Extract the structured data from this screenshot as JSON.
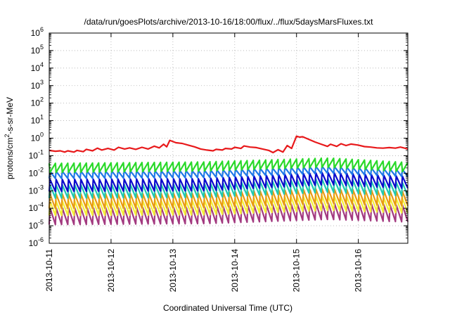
{
  "chart_data": {
    "type": "line",
    "title": "/data/run/goesPlots/archive/2013-10-16/18:00/flux/../flux/5daysMarsFluxes.txt",
    "xlabel": "Coordinated Universal Time (UTC)",
    "ylabel_parts": {
      "pre": "protons/cm",
      "sup": "2",
      "post": "-s-sr-MeV"
    },
    "x_ticks": [
      "2013-10-11",
      "2013-10-12",
      "2013-10-13",
      "2013-10-14",
      "2013-10-15",
      "2013-10-16"
    ],
    "xlim_days": [
      0,
      5.8
    ],
    "y_scale": "log",
    "ylim_exp": [
      -6,
      6
    ],
    "y_ticks": [
      {
        "base": "10",
        "exp": "-6"
      },
      {
        "base": "10",
        "exp": "-5"
      },
      {
        "base": "10",
        "exp": "-4"
      },
      {
        "base": "10",
        "exp": "-3"
      },
      {
        "base": "10",
        "exp": "-2"
      },
      {
        "base": "10",
        "exp": "-1"
      },
      {
        "base": "10",
        "exp": "0"
      },
      {
        "base": "10",
        "exp": "1"
      },
      {
        "base": "10",
        "exp": "2"
      },
      {
        "base": "10",
        "exp": "3"
      },
      {
        "base": "10",
        "exp": "4"
      },
      {
        "base": "10",
        "exp": "5"
      },
      {
        "base": "10",
        "exp": "6"
      }
    ],
    "grid": true,
    "series": [
      {
        "color": "#e8191b",
        "kind": "red",
        "points": [
          [
            0.0,
            0.2
          ],
          [
            0.1,
            0.18
          ],
          [
            0.18,
            0.19
          ],
          [
            0.25,
            0.16
          ],
          [
            0.3,
            0.19
          ],
          [
            0.4,
            0.16
          ],
          [
            0.45,
            0.2
          ],
          [
            0.55,
            0.17
          ],
          [
            0.6,
            0.23
          ],
          [
            0.7,
            0.19
          ],
          [
            0.78,
            0.27
          ],
          [
            0.85,
            0.21
          ],
          [
            0.95,
            0.26
          ],
          [
            1.05,
            0.21
          ],
          [
            1.12,
            0.3
          ],
          [
            1.22,
            0.24
          ],
          [
            1.3,
            0.28
          ],
          [
            1.4,
            0.23
          ],
          [
            1.5,
            0.3
          ],
          [
            1.6,
            0.24
          ],
          [
            1.7,
            0.35
          ],
          [
            1.78,
            0.28
          ],
          [
            1.85,
            0.45
          ],
          [
            1.9,
            0.32
          ],
          [
            1.95,
            0.75
          ],
          [
            2.05,
            0.55
          ],
          [
            2.15,
            0.5
          ],
          [
            2.25,
            0.4
          ],
          [
            2.35,
            0.32
          ],
          [
            2.45,
            0.24
          ],
          [
            2.55,
            0.21
          ],
          [
            2.65,
            0.19
          ],
          [
            2.7,
            0.23
          ],
          [
            2.8,
            0.21
          ],
          [
            2.85,
            0.26
          ],
          [
            2.95,
            0.24
          ],
          [
            3.0,
            0.3
          ],
          [
            3.1,
            0.26
          ],
          [
            3.15,
            0.36
          ],
          [
            3.25,
            0.31
          ],
          [
            3.35,
            0.29
          ],
          [
            3.45,
            0.24
          ],
          [
            3.55,
            0.2
          ],
          [
            3.62,
            0.15
          ],
          [
            3.7,
            0.22
          ],
          [
            3.78,
            0.16
          ],
          [
            3.85,
            0.38
          ],
          [
            3.92,
            0.26
          ],
          [
            4.0,
            1.3
          ],
          [
            4.05,
            1.15
          ],
          [
            4.1,
            1.2
          ],
          [
            4.2,
            0.85
          ],
          [
            4.3,
            0.6
          ],
          [
            4.4,
            0.45
          ],
          [
            4.5,
            0.34
          ],
          [
            4.55,
            0.45
          ],
          [
            4.65,
            0.34
          ],
          [
            4.72,
            0.48
          ],
          [
            4.8,
            0.38
          ],
          [
            4.88,
            0.46
          ],
          [
            5.0,
            0.4
          ],
          [
            5.1,
            0.33
          ],
          [
            5.2,
            0.31
          ],
          [
            5.3,
            0.28
          ],
          [
            5.4,
            0.27
          ],
          [
            5.5,
            0.29
          ],
          [
            5.6,
            0.27
          ],
          [
            5.68,
            0.31
          ],
          [
            5.75,
            0.27
          ],
          [
            5.8,
            0.24
          ]
        ]
      },
      {
        "color": "#2ad92a",
        "kind": "saw",
        "trend": [
          [
            0,
            0.02
          ],
          [
            2.5,
            0.024
          ],
          [
            4.5,
            0.04
          ],
          [
            5.8,
            0.022
          ]
        ],
        "amp": 0.55
      },
      {
        "color": "#1f78e8",
        "kind": "saw",
        "trend": [
          [
            0,
            0.008
          ],
          [
            2.5,
            0.009
          ],
          [
            4.5,
            0.016
          ],
          [
            5.8,
            0.01
          ]
        ],
        "amp": 1.6
      },
      {
        "color": "#0b0bcc",
        "kind": "saw",
        "trend": [
          [
            0,
            0.002
          ],
          [
            2.5,
            0.0022
          ],
          [
            4.5,
            0.005
          ],
          [
            5.8,
            0.003
          ]
        ],
        "amp": 2.2
      },
      {
        "color": "#21c9b0",
        "kind": "saw",
        "trend": [
          [
            0,
            0.0009
          ],
          [
            2.5,
            0.001
          ],
          [
            4.5,
            0.002
          ],
          [
            5.8,
            0.0012
          ]
        ],
        "amp": 2.4
      },
      {
        "color": "#e89b12",
        "kind": "saw",
        "trend": [
          [
            0,
            0.00025
          ],
          [
            2.5,
            0.00028
          ],
          [
            4.5,
            0.0005
          ],
          [
            5.8,
            0.00035
          ]
        ],
        "amp": 2.6
      },
      {
        "color": "#f4f03a",
        "kind": "saw",
        "trend": [
          [
            0,
            0.0001
          ],
          [
            2.5,
            0.00011
          ],
          [
            4.5,
            0.0002
          ],
          [
            5.8,
            0.00014
          ]
        ],
        "amp": 2.6
      },
      {
        "color": "#a33a80",
        "kind": "saw",
        "trend": [
          [
            0,
            3.5e-05
          ],
          [
            2.5,
            4e-05
          ],
          [
            4.5,
            7e-05
          ],
          [
            5.8,
            5e-05
          ]
        ],
        "amp": 3.0
      }
    ],
    "cycles": 58
  }
}
